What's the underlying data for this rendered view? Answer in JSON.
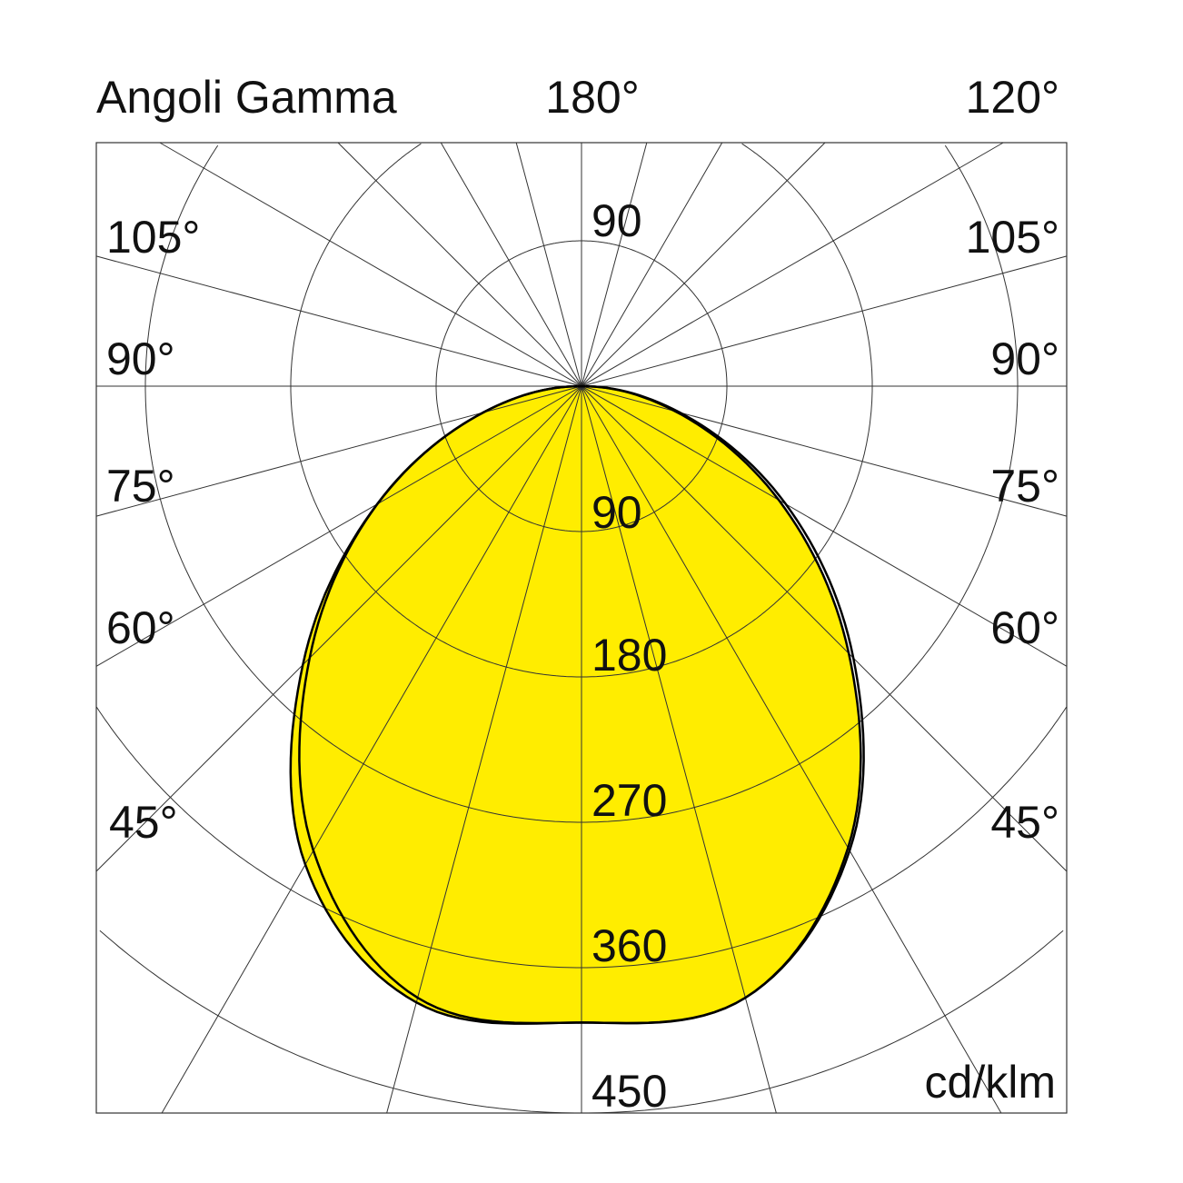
{
  "chart_data": {
    "type": "polar",
    "title": "Angoli Gamma",
    "unit": "cd/klm",
    "top_labels": {
      "center": "180°",
      "right": "120°"
    },
    "angle_labels_left": [
      "105°",
      "90°",
      "75°",
      "60°",
      "45°"
    ],
    "angle_labels_right": [
      "105°",
      "90°",
      "75°",
      "60°",
      "45°"
    ],
    "radial_ticks": [
      90,
      180,
      270,
      360,
      450
    ],
    "radial_tick_labels": [
      "90",
      "180",
      "270",
      "360",
      "450"
    ],
    "top_radial_label": "90",
    "radial_max": 450,
    "grid_angle_step_deg": 15,
    "grid": true,
    "gamma_angles": [
      0,
      15,
      30,
      45,
      60,
      75,
      90
    ],
    "series": [
      {
        "style": "filled",
        "color": "#ffed00",
        "left": [
          394,
          395,
          342,
          244,
          146,
          63,
          0
        ],
        "right": [
          394,
          392,
          330,
          234,
          141,
          60,
          0
        ]
      },
      {
        "style": "outline",
        "color": "#000000",
        "left": [
          394,
          392,
          332,
          238,
          146,
          63,
          0
        ],
        "right": [
          394,
          392,
          332,
          238,
          146,
          63,
          0
        ]
      }
    ]
  }
}
